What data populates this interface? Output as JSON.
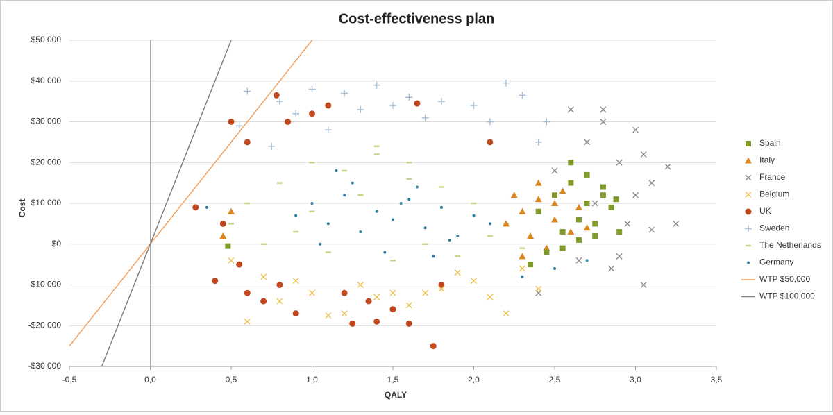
{
  "chart_data": {
    "type": "scatter",
    "title": "Cost-effectiveness plan",
    "x_label": "QALY",
    "y_label": "Cost",
    "xlim": [
      -0.5,
      3.5
    ],
    "xticks": [
      {
        "value": -0.5,
        "label": "-0,5"
      },
      {
        "value": 0,
        "label": "0,0"
      },
      {
        "value": 0.5,
        "label": "0,5"
      },
      {
        "value": 1,
        "label": "1,0"
      },
      {
        "value": 1.5,
        "label": "1,5"
      },
      {
        "value": 2,
        "label": "2,0"
      },
      {
        "value": 2.5,
        "label": "2,5"
      },
      {
        "value": 3,
        "label": "3,0"
      },
      {
        "value": 3.5,
        "label": "3,5"
      }
    ],
    "ylim": [
      -30000,
      50000
    ],
    "yticks": [
      {
        "value": -30000,
        "label": "-$30 000"
      },
      {
        "value": -20000,
        "label": "-$20 000"
      },
      {
        "value": -10000,
        "label": "-$10 000"
      },
      {
        "value": 0,
        "label": "$0"
      },
      {
        "value": 10000,
        "label": "$10 000"
      },
      {
        "value": 20000,
        "label": "$20 000"
      },
      {
        "value": 30000,
        "label": "$30 000"
      },
      {
        "value": 40000,
        "label": "$40 000"
      },
      {
        "value": 50000,
        "label": "$50 000"
      }
    ],
    "grid": true,
    "legend": "right",
    "series": [
      {
        "name": "UK",
        "color": "#c0461e",
        "marker": "circle",
        "x": [
          0.28,
          0.5,
          0.6,
          0.78,
          0.85,
          1.1,
          1.25,
          1.4,
          1.6,
          1.75,
          0.45,
          0.55,
          0.7,
          0.9,
          1.2,
          1.5,
          1.65,
          1.8,
          1.0,
          1.35,
          0.4,
          0.6,
          0.8,
          2.1
        ],
        "values": [
          9000,
          30000,
          25000,
          36500,
          30000,
          34000,
          -19500,
          -19000,
          -19500,
          -25000,
          5000,
          -5000,
          -14000,
          -17000,
          -12000,
          -16000,
          34500,
          -10000,
          32000,
          -14000,
          -9000,
          -12000,
          -10000,
          25000
        ]
      },
      {
        "name": "Sweden",
        "color": "#a6bfd6",
        "marker": "plus",
        "x": [
          0.6,
          0.8,
          1.0,
          1.2,
          1.4,
          1.6,
          1.8,
          2.0,
          2.2,
          2.3,
          2.45,
          0.55,
          0.9,
          1.3,
          1.7,
          2.1,
          2.4,
          1.5,
          1.1,
          0.75
        ],
        "values": [
          37500,
          35000,
          38000,
          37000,
          39000,
          36000,
          35000,
          34000,
          39500,
          36500,
          30000,
          29000,
          32000,
          33000,
          31000,
          30000,
          25000,
          34000,
          28000,
          24000
        ]
      },
      {
        "name": "France",
        "color": "#8c8c8c",
        "marker": "x",
        "x": [
          2.6,
          2.7,
          2.8,
          2.9,
          3.0,
          3.1,
          3.2,
          2.5,
          2.65,
          2.85,
          2.95,
          3.05,
          2.75,
          3.0,
          3.1,
          2.4,
          2.8,
          2.9,
          3.25,
          3.05
        ],
        "values": [
          33000,
          25000,
          30000,
          20000,
          12000,
          15000,
          19000,
          18000,
          -4000,
          -6000,
          5000,
          22000,
          10000,
          28000,
          3500,
          -12000,
          33000,
          -3000,
          5000,
          -10000
        ]
      },
      {
        "name": "Belgium",
        "color": "#f0c050",
        "marker": "x",
        "x": [
          0.6,
          0.8,
          1.0,
          1.2,
          1.4,
          1.6,
          1.8,
          2.0,
          2.2,
          2.4,
          0.5,
          0.9,
          1.3,
          1.7,
          2.1,
          0.7,
          1.1,
          1.5,
          1.9,
          2.3
        ],
        "values": [
          -19000,
          -14000,
          -12000,
          -17000,
          -13000,
          -15000,
          -11000,
          -9000,
          -17000,
          -11000,
          -4000,
          -9000,
          -10000,
          -12000,
          -13000,
          -8000,
          -17500,
          -12000,
          -7000,
          -6000
        ]
      },
      {
        "name": "The Netherlands",
        "color": "#c9d48a",
        "marker": "dash",
        "x": [
          0.6,
          0.8,
          1.0,
          1.2,
          1.4,
          1.6,
          1.8,
          2.0,
          2.2,
          0.7,
          0.9,
          1.1,
          1.3,
          1.5,
          1.7,
          1.9,
          2.1,
          0.5,
          1.0,
          1.6,
          2.3,
          1.4
        ],
        "values": [
          10000,
          15000,
          20000,
          18000,
          22000,
          16000,
          14000,
          10000,
          5000,
          0,
          3000,
          -2000,
          12000,
          -4000,
          0,
          -3000,
          2000,
          5000,
          8000,
          20000,
          -1000,
          24000
        ]
      },
      {
        "name": "Germany",
        "color": "#2e7fa0",
        "marker": "dot",
        "x": [
          0.9,
          1.0,
          1.1,
          1.2,
          1.3,
          1.4,
          1.5,
          1.6,
          1.7,
          1.8,
          1.9,
          2.0,
          2.1,
          1.05,
          1.25,
          1.45,
          1.65,
          1.85,
          2.3,
          2.5,
          2.7,
          0.35,
          1.15,
          1.55,
          1.75
        ],
        "values": [
          7000,
          10000,
          5000,
          12000,
          3000,
          8000,
          6000,
          11000,
          4000,
          9000,
          2000,
          7000,
          5000,
          0,
          15000,
          -2000,
          14000,
          1000,
          -8000,
          -6000,
          -4000,
          9000,
          18000,
          10000,
          -3000
        ]
      },
      {
        "name": "Italy",
        "color": "#d9861e",
        "marker": "triangle",
        "x": [
          2.2,
          2.3,
          2.35,
          2.4,
          2.45,
          2.5,
          2.55,
          2.6,
          2.65,
          2.3,
          2.4,
          2.5,
          0.45,
          0.5,
          2.25,
          2.7
        ],
        "values": [
          5000,
          8000,
          2000,
          11000,
          -1000,
          6000,
          13000,
          3000,
          9000,
          -3000,
          15000,
          10000,
          2000,
          8000,
          12000,
          4000
        ]
      },
      {
        "name": "Spain",
        "color": "#7f9a2a",
        "marker": "square",
        "x": [
          2.4,
          2.5,
          2.55,
          2.6,
          2.65,
          2.7,
          2.75,
          2.8,
          2.85,
          2.9,
          2.45,
          2.6,
          2.7,
          2.8,
          2.35,
          2.55,
          2.75,
          2.65,
          0.48,
          2.88
        ],
        "values": [
          8000,
          12000,
          3000,
          15000,
          6000,
          10000,
          2000,
          14000,
          9000,
          3000,
          -2000,
          20000,
          17000,
          12000,
          -5000,
          -1000,
          5000,
          1000,
          -500,
          11000
        ]
      },
      {
        "name": "WTP $50,000",
        "color": "#f0a060",
        "marker": "line",
        "x": [
          -0.5,
          1.0
        ],
        "values": [
          -25000,
          50000
        ]
      },
      {
        "name": "WTP $100,000",
        "color": "#808080",
        "marker": "line",
        "x": [
          -0.3,
          0.5
        ],
        "values": [
          -30000,
          50000
        ]
      }
    ],
    "legend_order": [
      7,
      6,
      2,
      3,
      0,
      1,
      4,
      5,
      8,
      9
    ]
  }
}
